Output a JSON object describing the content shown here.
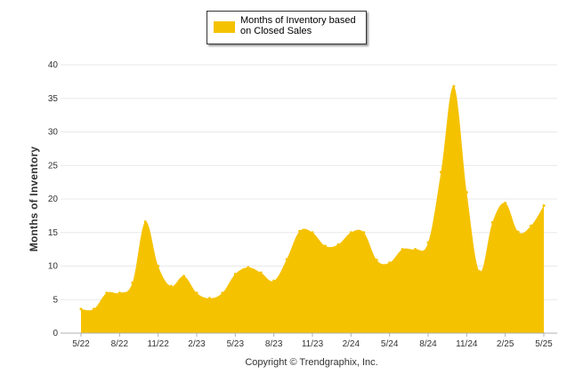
{
  "chart_data": {
    "type": "area",
    "series": [
      {
        "name": "Months of Inventory based on Closed Sales",
        "color": "#f5c200",
        "values": [
          3.6,
          3.6,
          6.0,
          6.0,
          7.5,
          16.6,
          10.0,
          7.0,
          8.5,
          6.0,
          5.2,
          6.0,
          8.8,
          9.8,
          9.0,
          7.8,
          11.0,
          15.2,
          15.0,
          13.0,
          13.2,
          15.0,
          15.0,
          10.9,
          10.5,
          12.5,
          12.5,
          13.5,
          24.0,
          36.8,
          21.0,
          9.2,
          16.5,
          19.4,
          15.1,
          16.0,
          19.0
        ]
      }
    ],
    "x_start": "5/22",
    "x_end": "5/25",
    "x_interval": "month",
    "tick_labels": [
      "5/22",
      "8/22",
      "11/22",
      "2/23",
      "5/23",
      "8/23",
      "11/23",
      "2/24",
      "5/24",
      "8/24",
      "11/24",
      "2/25",
      "5/25"
    ],
    "yticks": [
      0,
      5,
      10,
      15,
      20,
      25,
      30,
      35,
      40
    ],
    "ylim": [
      0,
      40
    ],
    "ylabel": "Months of Inventory",
    "xlabel": "",
    "grid": true,
    "legend_position": "top-center"
  },
  "legend": {
    "label": "Months of Inventory based on Closed Sales",
    "color": "#f5c200"
  },
  "footer": {
    "copyright": "Copyright © Trendgraphix, Inc."
  }
}
